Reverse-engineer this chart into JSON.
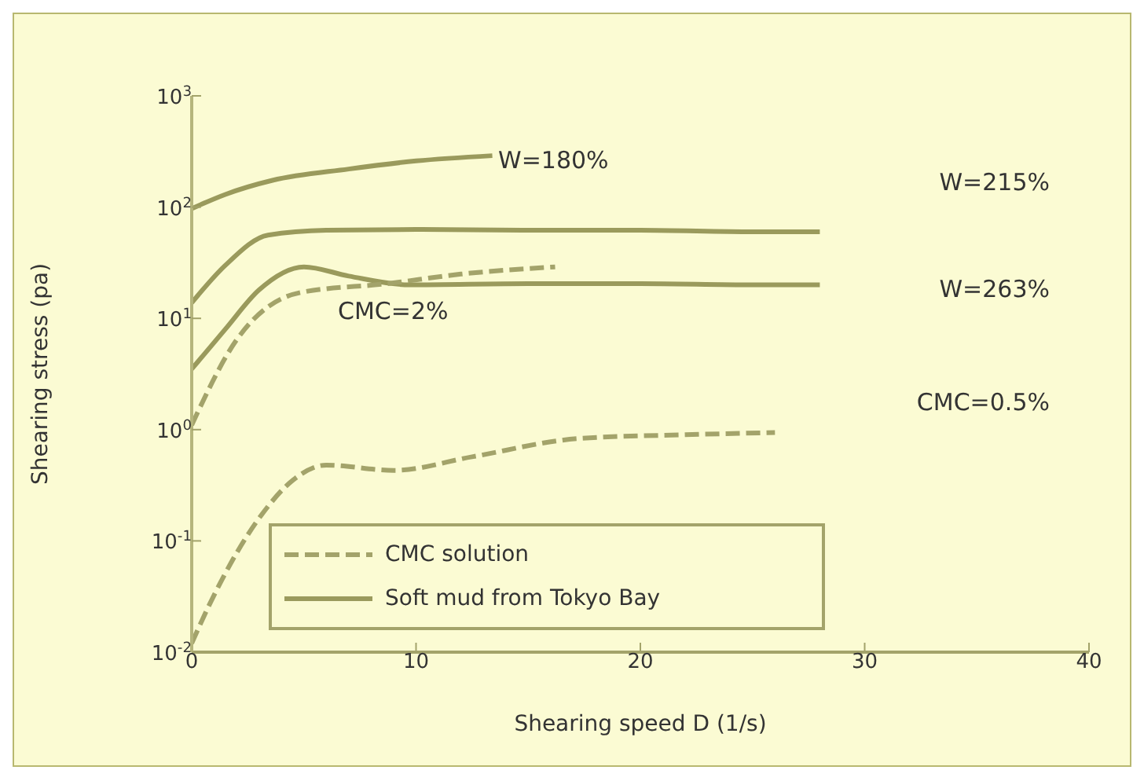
{
  "chart_data": {
    "type": "line",
    "xlabel": "Shearing speed D (1/s)",
    "ylabel": "Shearing stress (pa)",
    "xlim": [
      0,
      40
    ],
    "xticks": [
      0,
      10,
      20,
      30,
      40
    ],
    "ylim": [
      0.01,
      1000
    ],
    "yticks": [
      {
        "value": 0.01,
        "label": "10$^{-2}$"
      },
      {
        "value": 0.1,
        "label": "10$^{-1}$"
      },
      {
        "value": 1,
        "label": "10$^{0}$"
      },
      {
        "value": 10,
        "label": "10$^{1}$"
      },
      {
        "value": 100,
        "label": "10$^{2}$"
      },
      {
        "value": 1000,
        "label": "10$^{3}$"
      }
    ],
    "log": "y",
    "legend": "bottom left",
    "marker": "none",
    "series": [
      {
        "name": "CMC solution",
        "color": "#a3a36a",
        "line_style": "dashed",
        "x": [
          0,
          0.8,
          3.1,
          4.5,
          6,
          9,
          12.5,
          17.2,
          22,
          26
        ],
        "values": [
          0.012,
          0.027,
          0.17,
          0.35,
          0.48,
          0.43,
          0.57,
          0.83,
          0.9,
          0.94
        ]
      },
      {
        "name": "Soft mud from Tokyo Bay",
        "color": "#9a9a5c",
        "line_style": "solid",
        "x": [
          0,
          1.5,
          3.4,
          6,
          10,
          15,
          20,
          25,
          28
        ],
        "values": [
          13.8,
          30,
          56,
          62,
          63,
          62,
          62,
          60,
          60
        ]
      },
      {
        "color": "#9a9a5c",
        "line_style": "solid",
        "x": [
          0,
          1.5,
          3.6,
          7,
          10,
          13.4
        ],
        "values": [
          97,
          130,
          174,
          220,
          260,
          290
        ]
      },
      {
        "color": "#9a9a5c",
        "line_style": "solid",
        "x": [
          0,
          1.5,
          3,
          5,
          7,
          9.7,
          15,
          20,
          25,
          28
        ],
        "values": [
          3.5,
          8,
          18,
          29,
          24,
          20,
          20.5,
          20.5,
          20,
          20
        ]
      },
      {
        "color": "#a3a36a",
        "line_style": "dashed",
        "x": [
          0,
          2,
          4.8,
          8.7,
          12,
          16.2
        ],
        "values": [
          1.1,
          6.4,
          17,
          20.5,
          25,
          29
        ]
      }
    ],
    "annotations": [
      "W=180%",
      "CMC=2%",
      "W=215%",
      "W=263%",
      "CMC=0.5%"
    ]
  }
}
